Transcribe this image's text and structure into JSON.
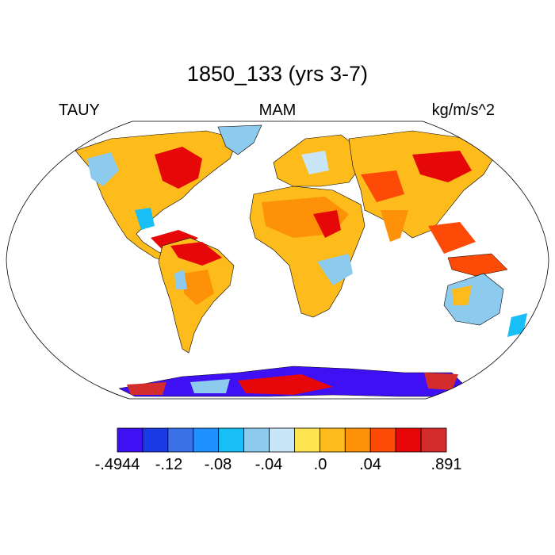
{
  "title": "1850_133 (yrs 3-7)",
  "labels": {
    "left": "TAUY",
    "center": "MAM",
    "right": "kg/m/s^2"
  },
  "colorbar": {
    "colors": [
      "#4010f5",
      "#1a3ae6",
      "#3a70e8",
      "#1e90ff",
      "#18bef6",
      "#8ccaee",
      "#c8e6f8",
      "#fee450",
      "#fdbb1c",
      "#fd9208",
      "#fd4a06",
      "#e60808",
      "#d42c2c"
    ],
    "labels": [
      "-.4944",
      "-.12",
      "-.08",
      "-.04",
      ".0",
      ".04",
      ".891"
    ]
  },
  "map": {
    "projection": "robinson",
    "land_fill": "#ffffff",
    "ocean_fill": "#ffffff"
  }
}
